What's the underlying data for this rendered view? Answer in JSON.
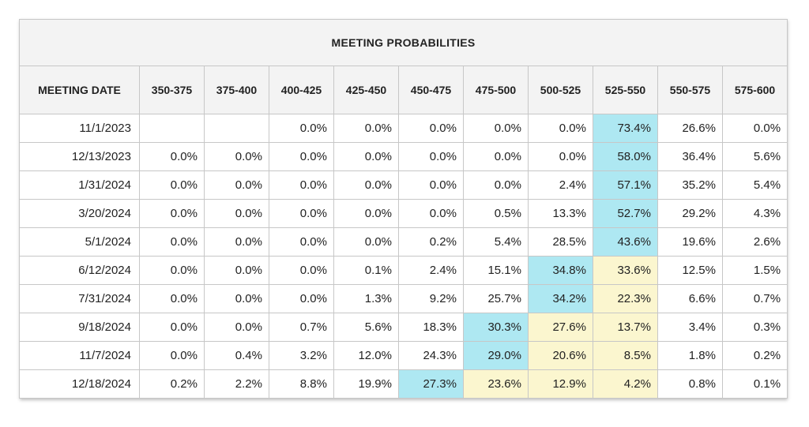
{
  "title": "MEETING PROBABILITIES",
  "columns": [
    "MEETING DATE",
    "350-375",
    "375-400",
    "400-425",
    "425-450",
    "450-475",
    "475-500",
    "500-525",
    "525-550",
    "550-575",
    "575-600"
  ],
  "highlight_colors": {
    "mode": "#aee8f2",
    "adjacent": "#fbf6cf"
  },
  "rows": [
    {
      "date": "11/1/2023",
      "values": [
        "",
        "",
        "0.0%",
        "0.0%",
        "0.0%",
        "0.0%",
        "0.0%",
        "73.4%",
        "26.6%",
        "0.0%"
      ],
      "highlights": [
        "",
        "",
        "",
        "",
        "",
        "",
        "",
        "blue",
        "",
        ""
      ]
    },
    {
      "date": "12/13/2023",
      "values": [
        "0.0%",
        "0.0%",
        "0.0%",
        "0.0%",
        "0.0%",
        "0.0%",
        "0.0%",
        "58.0%",
        "36.4%",
        "5.6%"
      ],
      "highlights": [
        "",
        "",
        "",
        "",
        "",
        "",
        "",
        "blue",
        "",
        ""
      ]
    },
    {
      "date": "1/31/2024",
      "values": [
        "0.0%",
        "0.0%",
        "0.0%",
        "0.0%",
        "0.0%",
        "0.0%",
        "2.4%",
        "57.1%",
        "35.2%",
        "5.4%"
      ],
      "highlights": [
        "",
        "",
        "",
        "",
        "",
        "",
        "",
        "blue",
        "",
        ""
      ]
    },
    {
      "date": "3/20/2024",
      "values": [
        "0.0%",
        "0.0%",
        "0.0%",
        "0.0%",
        "0.0%",
        "0.5%",
        "13.3%",
        "52.7%",
        "29.2%",
        "4.3%"
      ],
      "highlights": [
        "",
        "",
        "",
        "",
        "",
        "",
        "",
        "blue",
        "",
        ""
      ]
    },
    {
      "date": "5/1/2024",
      "values": [
        "0.0%",
        "0.0%",
        "0.0%",
        "0.0%",
        "0.2%",
        "5.4%",
        "28.5%",
        "43.6%",
        "19.6%",
        "2.6%"
      ],
      "highlights": [
        "",
        "",
        "",
        "",
        "",
        "",
        "",
        "blue",
        "",
        ""
      ]
    },
    {
      "date": "6/12/2024",
      "values": [
        "0.0%",
        "0.0%",
        "0.0%",
        "0.1%",
        "2.4%",
        "15.1%",
        "34.8%",
        "33.6%",
        "12.5%",
        "1.5%"
      ],
      "highlights": [
        "",
        "",
        "",
        "",
        "",
        "",
        "blue",
        "yellow",
        "",
        ""
      ]
    },
    {
      "date": "7/31/2024",
      "values": [
        "0.0%",
        "0.0%",
        "0.0%",
        "1.3%",
        "9.2%",
        "25.7%",
        "34.2%",
        "22.3%",
        "6.6%",
        "0.7%"
      ],
      "highlights": [
        "",
        "",
        "",
        "",
        "",
        "",
        "blue",
        "yellow",
        "",
        ""
      ]
    },
    {
      "date": "9/18/2024",
      "values": [
        "0.0%",
        "0.0%",
        "0.7%",
        "5.6%",
        "18.3%",
        "30.3%",
        "27.6%",
        "13.7%",
        "3.4%",
        "0.3%"
      ],
      "highlights": [
        "",
        "",
        "",
        "",
        "",
        "blue",
        "yellow",
        "yellow",
        "",
        ""
      ]
    },
    {
      "date": "11/7/2024",
      "values": [
        "0.0%",
        "0.4%",
        "3.2%",
        "12.0%",
        "24.3%",
        "29.0%",
        "20.6%",
        "8.5%",
        "1.8%",
        "0.2%"
      ],
      "highlights": [
        "",
        "",
        "",
        "",
        "",
        "blue",
        "yellow",
        "yellow",
        "",
        ""
      ]
    },
    {
      "date": "12/18/2024",
      "values": [
        "0.2%",
        "2.2%",
        "8.8%",
        "19.9%",
        "27.3%",
        "23.6%",
        "12.9%",
        "4.2%",
        "0.8%",
        "0.1%"
      ],
      "highlights": [
        "",
        "",
        "",
        "",
        "blue",
        "yellow",
        "yellow",
        "yellow",
        "",
        ""
      ]
    }
  ]
}
